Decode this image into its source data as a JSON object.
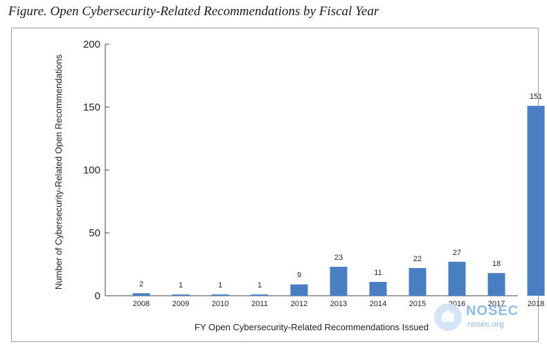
{
  "figure_title": "Figure.  Open Cybersecurity-Related Recommendations by Fiscal Year",
  "chart_data": {
    "type": "bar",
    "title": "Figure.  Open Cybersecurity-Related Recommendations by Fiscal Year",
    "xlabel": "FY Open Cybersecurity-Related Recommendations Issued",
    "ylabel": "Number of Cybersecurity-Related Open Recommendations",
    "categories": [
      "2008",
      "2009",
      "2010",
      "2011",
      "2012",
      "2013",
      "2014",
      "2015",
      "2016",
      "2017",
      "2018"
    ],
    "values": [
      2,
      1,
      1,
      1,
      9,
      23,
      11,
      22,
      27,
      18,
      151
    ],
    "ylim": [
      0,
      200
    ],
    "yticks": [
      0,
      50,
      100,
      150,
      200
    ],
    "grid": false,
    "bar_color": "#4a7ec2",
    "data_labels": true
  },
  "watermark": {
    "name": "NOSEC",
    "url": "nosec.org",
    "color": "#8fbde6"
  }
}
